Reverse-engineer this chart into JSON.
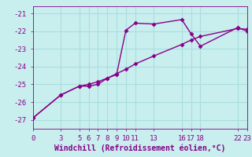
{
  "xlabel": "Windchill (Refroidissement éolien,°C)",
  "bg_color": "#c8eeee",
  "grid_color": "#aadddd",
  "line_color": "#880088",
  "xlim": [
    0,
    23
  ],
  "ylim": [
    -27.5,
    -20.6
  ],
  "yticks": [
    -27,
    -26,
    -25,
    -24,
    -23,
    -22,
    -21
  ],
  "xticks": [
    0,
    3,
    5,
    6,
    7,
    8,
    9,
    10,
    11,
    13,
    16,
    17,
    18,
    22,
    23
  ],
  "line1_x": [
    0,
    3,
    5,
    6,
    7,
    8,
    9,
    10,
    11,
    13,
    16,
    17,
    18,
    22,
    23
  ],
  "line1_y": [
    -26.9,
    -25.6,
    -25.1,
    -25.0,
    -24.85,
    -24.65,
    -24.4,
    -24.15,
    -23.85,
    -23.4,
    -22.75,
    -22.5,
    -22.3,
    -21.85,
    -21.9
  ],
  "line2_x": [
    0,
    3,
    5,
    6,
    7,
    8,
    9,
    10,
    11,
    13,
    16,
    17,
    18,
    22,
    23
  ],
  "line2_y": [
    -26.9,
    -25.6,
    -25.1,
    -25.1,
    -25.0,
    -24.65,
    -24.45,
    -21.95,
    -21.55,
    -21.6,
    -21.35,
    -22.15,
    -22.85,
    -21.8,
    -22.0
  ],
  "markersize": 2.5,
  "linewidth": 1.0,
  "xlabel_fontsize": 7,
  "tick_fontsize": 6.5
}
